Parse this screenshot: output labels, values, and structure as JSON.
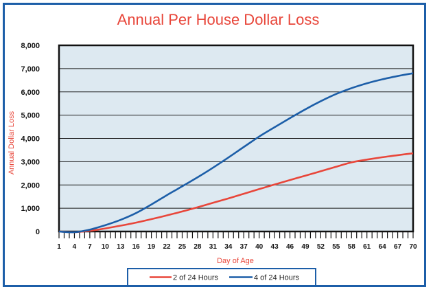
{
  "chart_data": {
    "type": "line",
    "title": "Annual Per House Dollar Loss",
    "xlabel": "Day of Age",
    "ylabel": "Annual Dollar Loss",
    "ylim": [
      0,
      8000
    ],
    "xlim": [
      1,
      70
    ],
    "x_tick_labels": [
      "1",
      "4",
      "7",
      "10",
      "13",
      "16",
      "19",
      "22",
      "25",
      "28",
      "31",
      "34",
      "37",
      "40",
      "43",
      "46",
      "49",
      "52",
      "55",
      "58",
      "61",
      "64",
      "67",
      "70"
    ],
    "y_tick_labels": [
      "0",
      "1,000",
      "2,000",
      "3,000",
      "4,000",
      "5,000",
      "6,000",
      "7,000",
      "8,000"
    ],
    "grid": true,
    "plot_background": "#dde9f1",
    "legend_position": "bottom-center",
    "series": [
      {
        "name": "2 of 24 Hours",
        "color": "#e8463a",
        "x": [
          1,
          4,
          7,
          10,
          13,
          16,
          19,
          22,
          25,
          28,
          31,
          34,
          37,
          40,
          43,
          46,
          49,
          52,
          55,
          58,
          61,
          64,
          67,
          70
        ],
        "values": [
          0,
          -30,
          30,
          130,
          250,
          380,
          530,
          690,
          860,
          1040,
          1230,
          1420,
          1620,
          1820,
          2020,
          2210,
          2400,
          2590,
          2780,
          2970,
          3090,
          3190,
          3280,
          3360
        ]
      },
      {
        "name": "4 of 24 Hours",
        "color": "#1c5ea8",
        "x": [
          1,
          4,
          7,
          10,
          13,
          16,
          19,
          22,
          25,
          28,
          31,
          34,
          37,
          40,
          43,
          46,
          49,
          52,
          55,
          58,
          61,
          64,
          67,
          70
        ],
        "values": [
          0,
          -30,
          80,
          270,
          500,
          790,
          1160,
          1560,
          1940,
          2330,
          2740,
          3180,
          3630,
          4080,
          4480,
          4870,
          5250,
          5600,
          5910,
          6160,
          6370,
          6540,
          6680,
          6800
        ]
      }
    ]
  }
}
